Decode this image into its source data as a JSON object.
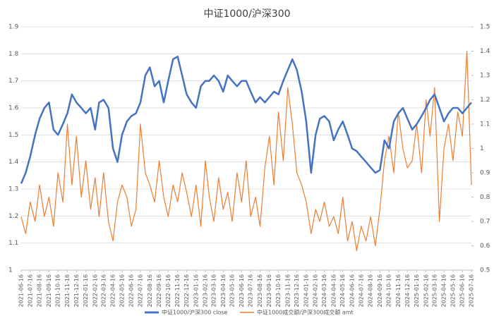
{
  "chart_data": {
    "type": "line",
    "title": "中证1000/沪深300",
    "x": [
      "2021-06-16",
      "2021-07-01",
      "2021-07-16",
      "2021-08-01",
      "2021-08-16",
      "2021-09-01",
      "2021-09-16",
      "2021-10-01",
      "2021-10-16",
      "2021-11-01",
      "2021-11-16",
      "2021-12-01",
      "2021-12-16",
      "2022-01-01",
      "2022-01-16",
      "2022-02-01",
      "2022-02-16",
      "2022-03-01",
      "2022-03-16",
      "2022-04-01",
      "2022-04-16",
      "2022-05-01",
      "2022-05-16",
      "2022-06-01",
      "2022-06-16",
      "2022-07-01",
      "2022-07-16",
      "2022-08-01",
      "2022-08-16",
      "2022-09-01",
      "2022-09-16",
      "2022-10-01",
      "2022-10-16",
      "2022-11-01",
      "2022-11-16",
      "2022-12-01",
      "2022-12-16",
      "2023-01-01",
      "2023-01-16",
      "2023-02-01",
      "2023-02-16",
      "2023-03-01",
      "2023-03-16",
      "2023-04-01",
      "2023-04-16",
      "2023-05-01",
      "2023-05-16",
      "2023-06-01",
      "2023-06-16",
      "2023-07-01",
      "2023-07-16",
      "2023-08-01",
      "2023-08-16",
      "2023-09-01",
      "2023-09-16",
      "2023-10-01",
      "2023-10-16",
      "2023-11-01",
      "2023-11-16",
      "2023-12-01",
      "2023-12-16",
      "2024-01-01",
      "2024-01-16",
      "2024-02-01",
      "2024-02-16",
      "2024-03-01",
      "2024-03-16",
      "2024-04-01",
      "2024-04-16",
      "2024-05-01",
      "2024-05-16",
      "2024-06-01",
      "2024-06-16",
      "2024-07-01",
      "2024-07-16",
      "2024-08-01",
      "2024-08-16",
      "2024-09-01",
      "2024-09-16",
      "2024-10-01",
      "2024-10-16",
      "2024-11-01",
      "2024-11-16",
      "2024-12-01",
      "2024-12-16",
      "2025-01-01",
      "2025-01-16",
      "2025-02-01",
      "2025-02-16",
      "2025-03-01",
      "2025-03-16",
      "2025-04-01",
      "2025-04-16",
      "2025-05-01",
      "2025-05-16",
      "2025-06-01",
      "2025-06-16",
      "2025-07-01",
      "2025-07-16"
    ],
    "series": [
      {
        "name": "中证1000/沪深300 close",
        "color": "#4472c4",
        "values": [
          1.32,
          1.36,
          1.42,
          1.5,
          1.56,
          1.6,
          1.62,
          1.52,
          1.5,
          1.54,
          1.58,
          1.65,
          1.62,
          1.6,
          1.58,
          1.6,
          1.52,
          1.62,
          1.63,
          1.6,
          1.45,
          1.4,
          1.5,
          1.55,
          1.57,
          1.58,
          1.62,
          1.72,
          1.75,
          1.68,
          1.7,
          1.62,
          1.7,
          1.78,
          1.79,
          1.72,
          1.65,
          1.62,
          1.6,
          1.68,
          1.7,
          1.7,
          1.72,
          1.7,
          1.66,
          1.72,
          1.7,
          1.68,
          1.7,
          1.7,
          1.66,
          1.62,
          1.64,
          1.62,
          1.64,
          1.66,
          1.65,
          1.7,
          1.74,
          1.78,
          1.74,
          1.66,
          1.55,
          1.36,
          1.5,
          1.56,
          1.57,
          1.55,
          1.48,
          1.52,
          1.55,
          1.5,
          1.45,
          1.44,
          1.42,
          1.4,
          1.38,
          1.36,
          1.37,
          1.48,
          1.45,
          1.55,
          1.58,
          1.6,
          1.56,
          1.52,
          1.54,
          1.57,
          1.6,
          1.63,
          1.65,
          1.6,
          1.55,
          1.58,
          1.6,
          1.6,
          1.58,
          1.6,
          1.62
        ]
      },
      {
        "name": "中证1000成交额/沪深300成交额 amt",
        "color": "#ed7d31",
        "axis": "y2",
        "values": [
          0.72,
          0.65,
          0.78,
          0.7,
          0.85,
          0.72,
          0.8,
          0.68,
          0.9,
          0.78,
          1.1,
          0.85,
          1.05,
          0.8,
          0.95,
          0.75,
          0.88,
          0.72,
          0.9,
          0.7,
          0.62,
          0.78,
          0.85,
          0.8,
          0.68,
          0.75,
          1.1,
          0.9,
          0.85,
          0.78,
          0.95,
          0.8,
          0.72,
          0.85,
          0.78,
          0.9,
          0.82,
          0.72,
          0.85,
          0.68,
          0.95,
          0.8,
          0.7,
          0.88,
          0.75,
          0.82,
          0.7,
          0.9,
          0.78,
          0.95,
          0.72,
          0.8,
          0.68,
          0.92,
          1.05,
          0.85,
          1.15,
          0.95,
          1.25,
          1.1,
          0.9,
          0.85,
          0.78,
          0.65,
          0.75,
          0.7,
          0.78,
          0.68,
          0.72,
          0.65,
          0.8,
          0.62,
          0.7,
          0.58,
          0.68,
          0.62,
          0.72,
          0.6,
          0.75,
          0.95,
          1.05,
          0.9,
          1.15,
          1.0,
          0.92,
          0.95,
          1.1,
          0.9,
          1.2,
          1.05,
          1.25,
          0.7,
          1.0,
          1.1,
          0.95,
          1.15,
          1.05,
          1.4,
          0.85
        ]
      }
    ],
    "xlim": [
      "2021-06-16",
      "2025-07-16"
    ],
    "xticks": [
      "2021-06-16",
      "2021-07-16",
      "2021-08-16",
      "2021-09-16",
      "2021-10-16",
      "2021-11-16",
      "2021-12-16",
      "2022-01-16",
      "2022-02-16",
      "2022-03-16",
      "2022-04-16",
      "2022-05-16",
      "2022-06-16",
      "2022-07-16",
      "2022-08-16",
      "2022-09-16",
      "2022-10-16",
      "2022-11-16",
      "2022-12-16",
      "2023-01-16",
      "2023-02-16",
      "2023-03-16",
      "2023-04-16",
      "2023-05-16",
      "2023-06-16",
      "2023-07-16",
      "2023-08-16",
      "2023-09-16",
      "2023-10-16",
      "2023-11-16",
      "2023-12-16",
      "2024-01-16",
      "2024-02-16",
      "2024-03-16",
      "2024-04-16",
      "2024-05-16",
      "2024-06-16",
      "2024-07-16",
      "2024-08-16",
      "2024-09-16",
      "2024-10-16",
      "2024-11-16",
      "2024-12-16",
      "2025-01-16",
      "2025-02-16",
      "2025-03-16",
      "2025-04-16",
      "2025-05-16",
      "2025-06-16",
      "2025-07-16"
    ],
    "ylim": [
      1,
      1.9
    ],
    "yticks": [
      1,
      1.1,
      1.2,
      1.3,
      1.4,
      1.5,
      1.6,
      1.7,
      1.8,
      1.9
    ],
    "y2lim": [
      0.5,
      1.5
    ],
    "y2ticks": [
      0.5,
      0.6,
      0.7,
      0.8,
      0.9,
      1,
      1.1,
      1.2,
      1.3,
      1.4,
      1.5
    ],
    "grid": true,
    "legend": "bottom"
  }
}
